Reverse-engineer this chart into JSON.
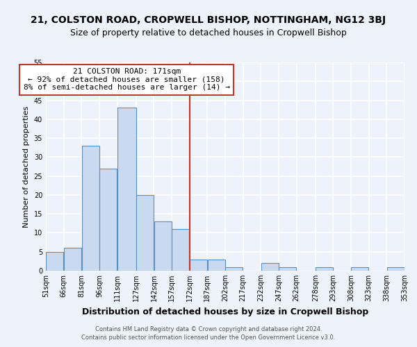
{
  "title_line1": "21, COLSTON ROAD, CROPWELL BISHOP, NOTTINGHAM, NG12 3BJ",
  "title_line2": "Size of property relative to detached houses in Cropwell Bishop",
  "xlabel": "Distribution of detached houses by size in Cropwell Bishop",
  "ylabel": "Number of detached properties",
  "footer_line1": "Contains HM Land Registry data © Crown copyright and database right 2024.",
  "footer_line2": "Contains public sector information licensed under the Open Government Licence v3.0.",
  "bar_left_edges": [
    51,
    66,
    81,
    96,
    111,
    127,
    142,
    157,
    172,
    187,
    202,
    217,
    232,
    247,
    262,
    278,
    293,
    308,
    323,
    338
  ],
  "bar_widths": [
    15,
    15,
    15,
    15,
    16,
    15,
    15,
    15,
    15,
    15,
    15,
    15,
    15,
    15,
    16,
    15,
    15,
    15,
    15,
    15
  ],
  "bar_heights": [
    5,
    6,
    33,
    27,
    43,
    20,
    13,
    11,
    3,
    3,
    1,
    0,
    2,
    1,
    0,
    1,
    0,
    1,
    0,
    1
  ],
  "x_tick_labels": [
    "51sqm",
    "66sqm",
    "81sqm",
    "96sqm",
    "111sqm",
    "127sqm",
    "142sqm",
    "157sqm",
    "172sqm",
    "187sqm",
    "202sqm",
    "217sqm",
    "232sqm",
    "247sqm",
    "262sqm",
    "278sqm",
    "293sqm",
    "308sqm",
    "323sqm",
    "338sqm",
    "353sqm"
  ],
  "x_tick_positions": [
    51,
    66,
    81,
    96,
    111,
    127,
    142,
    157,
    172,
    187,
    202,
    217,
    232,
    247,
    262,
    278,
    293,
    308,
    323,
    338,
    353
  ],
  "ylim": [
    0,
    55
  ],
  "yticks": [
    0,
    5,
    10,
    15,
    20,
    25,
    30,
    35,
    40,
    45,
    50,
    55
  ],
  "xlim_min": 51,
  "xlim_max": 353,
  "bar_color": "#c8d9f0",
  "bar_edge_color": "#5a8fc0",
  "vline_x": 172,
  "vline_color": "#c0392b",
  "annotation_title": "21 COLSTON ROAD: 171sqm",
  "annotation_line1": "← 92% of detached houses are smaller (158)",
  "annotation_line2": "8% of semi-detached houses are larger (14) →",
  "annotation_box_color": "#ffffff",
  "annotation_box_edge": "#c0392b",
  "background_color": "#eef2fa",
  "grid_color": "#ffffff",
  "title_fontsize": 10,
  "subtitle_fontsize": 9,
  "annotation_fontsize": 8,
  "xlabel_fontsize": 9,
  "ylabel_fontsize": 8,
  "tick_fontsize": 7,
  "footer_fontsize": 6
}
